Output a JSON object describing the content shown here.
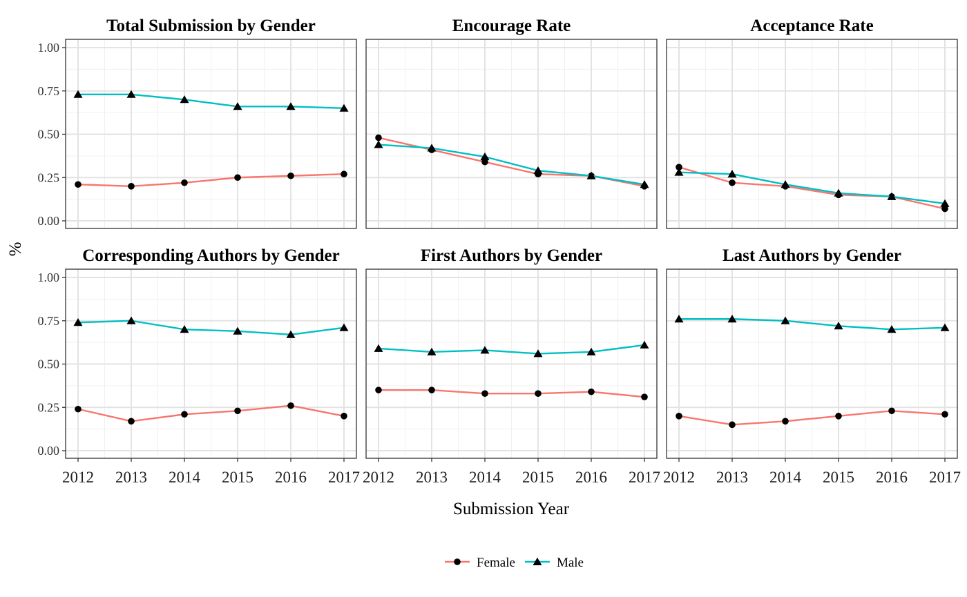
{
  "chart_data": {
    "type": "line",
    "ylabel": "%",
    "xlabel": "Submission Year",
    "ylim": [
      0,
      1
    ],
    "y_ticks": [
      "0.00",
      "0.25",
      "0.50",
      "0.75",
      "1.00"
    ],
    "x_ticks": [
      "2012",
      "2013",
      "2014",
      "2015",
      "2016",
      "2017"
    ],
    "grid": true,
    "legend": {
      "position": "bottom",
      "items": [
        {
          "name": "Female",
          "color": "#F8766D",
          "marker": "circle"
        },
        {
          "name": "Male",
          "color": "#00BFC4",
          "marker": "triangle"
        }
      ]
    },
    "panels": [
      {
        "title": "Total Submission by Gender",
        "series": [
          {
            "name": "Female",
            "values": [
              0.21,
              0.2,
              0.22,
              0.25,
              0.26,
              0.27
            ]
          },
          {
            "name": "Male",
            "values": [
              0.73,
              0.73,
              0.7,
              0.66,
              0.66,
              0.65
            ]
          }
        ]
      },
      {
        "title": "Encourage Rate",
        "series": [
          {
            "name": "Female",
            "values": [
              0.48,
              0.41,
              0.34,
              0.27,
              0.26,
              0.2
            ]
          },
          {
            "name": "Male",
            "values": [
              0.44,
              0.42,
              0.37,
              0.29,
              0.26,
              0.21
            ]
          }
        ]
      },
      {
        "title": "Acceptance Rate",
        "series": [
          {
            "name": "Female",
            "values": [
              0.31,
              0.22,
              0.2,
              0.15,
              0.14,
              0.07
            ]
          },
          {
            "name": "Male",
            "values": [
              0.28,
              0.27,
              0.21,
              0.16,
              0.14,
              0.1
            ]
          }
        ]
      },
      {
        "title": "Corresponding Authors by Gender",
        "series": [
          {
            "name": "Female",
            "values": [
              0.24,
              0.17,
              0.21,
              0.23,
              0.26,
              0.2
            ]
          },
          {
            "name": "Male",
            "values": [
              0.74,
              0.75,
              0.7,
              0.69,
              0.67,
              0.71
            ]
          }
        ]
      },
      {
        "title": "First Authors by Gender",
        "series": [
          {
            "name": "Female",
            "values": [
              0.35,
              0.35,
              0.33,
              0.33,
              0.34,
              0.31
            ]
          },
          {
            "name": "Male",
            "values": [
              0.59,
              0.57,
              0.58,
              0.56,
              0.57,
              0.61
            ]
          }
        ]
      },
      {
        "title": "Last Authors by Gender",
        "series": [
          {
            "name": "Female",
            "values": [
              0.2,
              0.15,
              0.17,
              0.2,
              0.23,
              0.21
            ]
          },
          {
            "name": "Male",
            "values": [
              0.76,
              0.76,
              0.75,
              0.72,
              0.7,
              0.71
            ]
          }
        ]
      }
    ]
  }
}
